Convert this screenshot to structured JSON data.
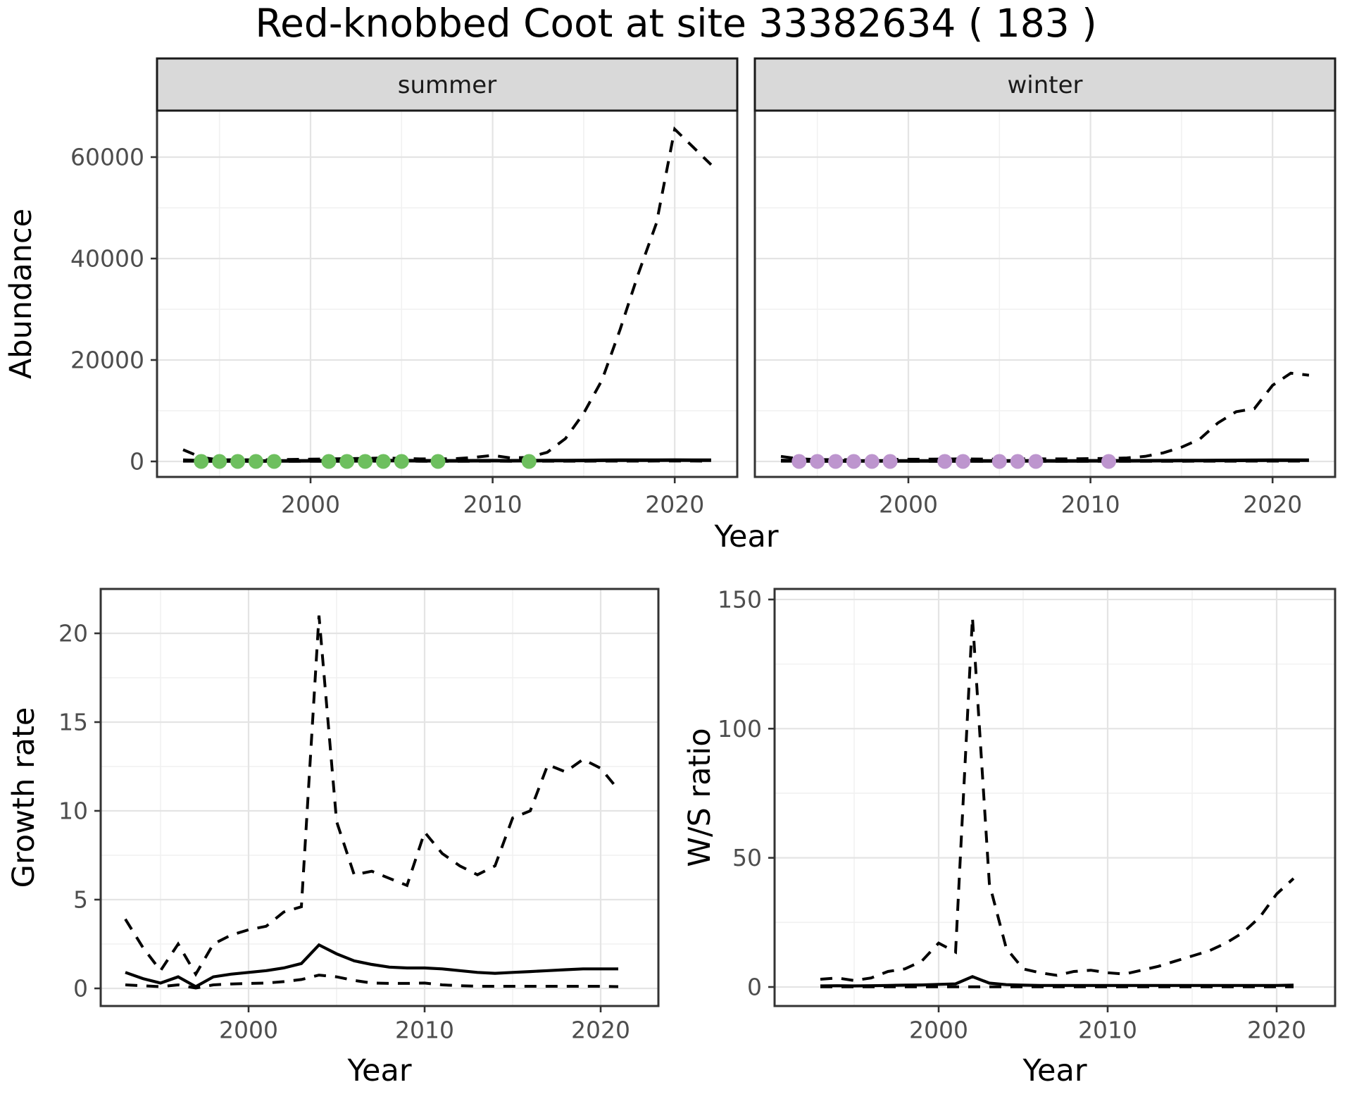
{
  "title": "Red-knobbed Coot at site 33382634 ( 183 )",
  "facets": [
    {
      "label": "summer"
    },
    {
      "label": "winter"
    }
  ],
  "axis_titles": {
    "abundance": "Abundance",
    "top_x": "Year",
    "growth": "Growth rate",
    "growth_x": "Year",
    "ws": "W/S ratio",
    "ws_x": "Year"
  },
  "colors": {
    "summer_points": "#6dbf5e",
    "winter_points": "#bd95ce",
    "line": "#000000",
    "panel_border": "#333333",
    "strip_fill": "#d9d9d9",
    "strip_border": "#1a1a1a",
    "grid_major": "#e4e4e4",
    "grid_minor": "#f1f1f1",
    "tick_text": "#4d4d4d"
  },
  "chart_data": [
    {
      "id": "summer",
      "type": "line",
      "title": "summer",
      "xlabel": "Year",
      "ylabel": "Abundance",
      "xlim": [
        1991.6,
        2023.4
      ],
      "ylim": [
        -3000,
        69000
      ],
      "x": [
        1993,
        1994,
        1995,
        1996,
        1997,
        1998,
        1999,
        2000,
        2001,
        2002,
        2003,
        2004,
        2005,
        2006,
        2007,
        2008,
        2009,
        2010,
        2011,
        2012,
        2013,
        2014,
        2015,
        2016,
        2017,
        2018,
        2019,
        2020,
        2021,
        2022
      ],
      "series": [
        {
          "name": "lower_ci",
          "style": "dashed",
          "values": [
            60,
            40,
            30,
            30,
            30,
            30,
            35,
            40,
            40,
            45,
            50,
            55,
            50,
            45,
            40,
            40,
            45,
            50,
            45,
            45,
            50,
            55,
            60,
            65,
            70,
            75,
            80,
            85,
            80,
            75
          ]
        },
        {
          "name": "upper_ci",
          "style": "dashed",
          "values": [
            2300,
            800,
            300,
            350,
            300,
            350,
            400,
            450,
            500,
            550,
            600,
            700,
            600,
            500,
            500,
            550,
            800,
            1200,
            700,
            800,
            1800,
            4500,
            9500,
            16000,
            26000,
            37000,
            47000,
            65500,
            62000,
            58500
          ]
        },
        {
          "name": "mean",
          "style": "solid",
          "values": [
            250,
            130,
            100,
            100,
            90,
            100,
            110,
            120,
            130,
            140,
            150,
            160,
            150,
            140,
            130,
            130,
            140,
            150,
            140,
            150,
            160,
            180,
            200,
            220,
            230,
            240,
            250,
            260,
            250,
            240
          ]
        }
      ],
      "points": {
        "name": "observed_counts",
        "color": "#6dbf5e",
        "value": 0,
        "years": [
          1994,
          1995,
          1996,
          1997,
          1998,
          2001,
          2002,
          2003,
          2004,
          2005,
          2007,
          2012
        ]
      },
      "xticks": {
        "values": [
          2000,
          2010,
          2020
        ],
        "labels": [
          "2000",
          "2010",
          "2020"
        ]
      },
      "yticks": {
        "values": [
          0,
          20000,
          40000,
          60000
        ],
        "labels": [
          "0",
          "20000",
          "40000",
          "60000"
        ],
        "show_labels": true
      },
      "grid": true,
      "legend": "none"
    },
    {
      "id": "winter",
      "type": "line",
      "title": "winter",
      "xlabel": "Year",
      "ylabel": "Abundance",
      "xlim": [
        1991.6,
        2023.4
      ],
      "ylim": [
        -3000,
        69000
      ],
      "x": [
        1993,
        1994,
        1995,
        1996,
        1997,
        1998,
        1999,
        2000,
        2001,
        2002,
        2003,
        2004,
        2005,
        2006,
        2007,
        2008,
        2009,
        2010,
        2011,
        2012,
        2013,
        2014,
        2015,
        2016,
        2017,
        2018,
        2019,
        2020,
        2021,
        2022
      ],
      "series": [
        {
          "name": "lower_ci",
          "style": "dashed",
          "values": [
            50,
            35,
            30,
            28,
            27,
            28,
            30,
            32,
            33,
            34,
            35,
            34,
            33,
            34,
            35,
            34,
            34,
            35,
            36,
            38,
            40,
            44,
            48,
            52,
            58,
            62,
            64,
            68,
            70,
            69
          ]
        },
        {
          "name": "upper_ci",
          "style": "dashed",
          "values": [
            1000,
            500,
            380,
            350,
            350,
            380,
            400,
            430,
            450,
            480,
            500,
            470,
            450,
            480,
            520,
            500,
            500,
            550,
            600,
            700,
            1000,
            1700,
            2800,
            4400,
            7600,
            9800,
            10400,
            15000,
            17400,
            17000
          ]
        },
        {
          "name": "mean",
          "style": "solid",
          "values": [
            200,
            120,
            100,
            95,
            90,
            95,
            100,
            105,
            110,
            115,
            120,
            115,
            110,
            115,
            120,
            115,
            115,
            120,
            125,
            130,
            140,
            150,
            165,
            180,
            200,
            215,
            220,
            235,
            245,
            240
          ]
        }
      ],
      "points": {
        "name": "observed_counts",
        "color": "#bd95ce",
        "value": 0,
        "years": [
          1994,
          1995,
          1996,
          1997,
          1998,
          1999,
          2002,
          2003,
          2005,
          2006,
          2007,
          2011
        ]
      },
      "xticks": {
        "values": [
          2000,
          2010,
          2020
        ],
        "labels": [
          "2000",
          "2010",
          "2020"
        ]
      },
      "yticks": {
        "values": [
          0,
          20000,
          40000,
          60000
        ],
        "labels": [
          "0",
          "20000",
          "40000",
          "60000"
        ],
        "show_labels": false
      },
      "grid": true,
      "legend": "none"
    },
    {
      "id": "growth",
      "type": "line",
      "title": "",
      "xlabel": "Year",
      "ylabel": "Growth rate",
      "xlim": [
        1991.6,
        2023.3
      ],
      "ylim": [
        -0.99,
        22.4
      ],
      "x": [
        1993,
        1994,
        1995,
        1996,
        1997,
        1998,
        1999,
        2000,
        2001,
        2002,
        2003,
        2004,
        2005,
        2006,
        2007,
        2008,
        2009,
        2010,
        2011,
        2012,
        2013,
        2014,
        2015,
        2016,
        2017,
        2018,
        2019,
        2020,
        2021
      ],
      "series": [
        {
          "name": "lower_ci",
          "style": "dashed",
          "values": [
            0.2,
            0.15,
            0.1,
            0.2,
            0.02,
            0.2,
            0.25,
            0.28,
            0.3,
            0.38,
            0.5,
            0.75,
            0.65,
            0.45,
            0.3,
            0.28,
            0.28,
            0.3,
            0.2,
            0.15,
            0.12,
            0.12,
            0.12,
            0.12,
            0.12,
            0.12,
            0.12,
            0.12,
            0.1
          ]
        },
        {
          "name": "upper_ci",
          "style": "dashed",
          "values": [
            3.9,
            2.3,
            1.0,
            2.5,
            0.8,
            2.5,
            3.0,
            3.3,
            3.5,
            4.3,
            4.6,
            21.0,
            9.4,
            6.4,
            6.6,
            6.2,
            5.8,
            8.8,
            7.6,
            6.9,
            6.4,
            6.9,
            9.6,
            10.0,
            12.6,
            12.2,
            12.9,
            12.4,
            11.2
          ]
        },
        {
          "name": "mean",
          "style": "solid",
          "values": [
            0.9,
            0.55,
            0.3,
            0.65,
            0.1,
            0.65,
            0.8,
            0.9,
            1.0,
            1.15,
            1.4,
            2.45,
            1.95,
            1.55,
            1.35,
            1.2,
            1.15,
            1.15,
            1.1,
            1.0,
            0.9,
            0.85,
            0.9,
            0.95,
            1.0,
            1.05,
            1.1,
            1.1,
            1.1
          ]
        }
      ],
      "points": null,
      "xticks": {
        "values": [
          2000,
          2010,
          2020
        ],
        "labels": [
          "2000",
          "2010",
          "2020"
        ]
      },
      "yticks": {
        "values": [
          0,
          5,
          10,
          15,
          20
        ],
        "labels": [
          "0",
          "5",
          "10",
          "15",
          "20"
        ],
        "show_labels": true
      },
      "grid": true,
      "legend": "none"
    },
    {
      "id": "ws",
      "type": "line",
      "title": "",
      "xlabel": "Year",
      "ylabel": "W/S ratio",
      "xlim": [
        1990.4,
        2023.4
      ],
      "ylim": [
        -7.3,
        154
      ],
      "x": [
        1993,
        1994,
        1995,
        1996,
        1997,
        1998,
        1999,
        2000,
        2001,
        2002,
        2003,
        2004,
        2005,
        2006,
        2007,
        2008,
        2009,
        2010,
        2011,
        2012,
        2013,
        2014,
        2015,
        2016,
        2017,
        2018,
        2019,
        2020,
        2021
      ],
      "series": [
        {
          "name": "lower_ci",
          "style": "dashed",
          "values": [
            0.05,
            0.05,
            0.05,
            0.05,
            0.05,
            0.05,
            0.05,
            0.05,
            0.05,
            0.05,
            0.05,
            0.05,
            0.05,
            0.05,
            0.05,
            0.05,
            0.05,
            0.05,
            0.05,
            0.05,
            0.05,
            0.05,
            0.05,
            0.05,
            0.05,
            0.05,
            0.05,
            0.05,
            0.05
          ]
        },
        {
          "name": "upper_ci",
          "style": "dashed",
          "values": [
            3.0,
            3.5,
            2.5,
            3.5,
            6.0,
            7.0,
            10.0,
            17.0,
            13.5,
            143.0,
            40.0,
            15.0,
            7.0,
            5.5,
            4.5,
            6.0,
            6.5,
            5.5,
            5.0,
            6.5,
            8.0,
            10.0,
            12.0,
            14.0,
            17.0,
            21.0,
            27.0,
            36.0,
            42.0
          ]
        },
        {
          "name": "mean",
          "style": "solid",
          "values": [
            0.4,
            0.5,
            0.4,
            0.5,
            0.6,
            0.7,
            0.8,
            1.0,
            1.2,
            4.0,
            1.5,
            0.9,
            0.7,
            0.6,
            0.6,
            0.6,
            0.6,
            0.6,
            0.6,
            0.6,
            0.6,
            0.6,
            0.6,
            0.6,
            0.6,
            0.6,
            0.6,
            0.6,
            0.7
          ]
        }
      ],
      "points": null,
      "xticks": {
        "values": [
          2000,
          2010,
          2020
        ],
        "labels": [
          "2000",
          "2010",
          "2020"
        ]
      },
      "yticks": {
        "values": [
          0,
          50,
          100,
          150
        ],
        "labels": [
          "0",
          "50",
          "100",
          "150"
        ],
        "show_labels": true
      },
      "grid": true,
      "legend": "none"
    }
  ]
}
